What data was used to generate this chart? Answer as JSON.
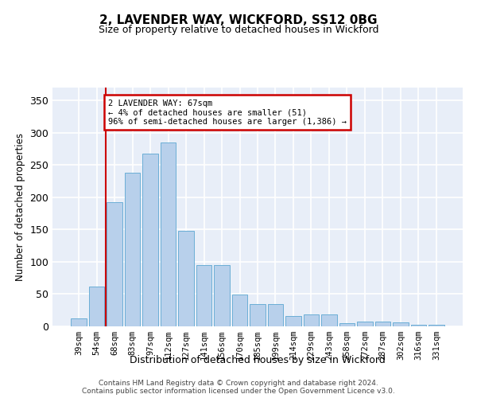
{
  "title1": "2, LAVENDER WAY, WICKFORD, SS12 0BG",
  "title2": "Size of property relative to detached houses in Wickford",
  "xlabel": "Distribution of detached houses by size in Wickford",
  "ylabel": "Number of detached properties",
  "categories": [
    "39sqm",
    "54sqm",
    "68sqm",
    "83sqm",
    "97sqm",
    "112sqm",
    "127sqm",
    "141sqm",
    "156sqm",
    "170sqm",
    "185sqm",
    "199sqm",
    "214sqm",
    "229sqm",
    "243sqm",
    "258sqm",
    "272sqm",
    "287sqm",
    "302sqm",
    "316sqm",
    "331sqm"
  ],
  "values": [
    12,
    62,
    192,
    238,
    268,
    285,
    148,
    95,
    95,
    49,
    35,
    35,
    16,
    18,
    18,
    5,
    8,
    7,
    6,
    2,
    3
  ],
  "bar_color": "#b8d0eb",
  "bar_edge_color": "#6baed6",
  "vline_color": "#cc0000",
  "annotation_text": "2 LAVENDER WAY: 67sqm\n← 4% of detached houses are smaller (51)\n96% of semi-detached houses are larger (1,386) →",
  "annotation_box_color": "#cc0000",
  "ylim": [
    0,
    370
  ],
  "yticks": [
    0,
    50,
    100,
    150,
    200,
    250,
    300,
    350
  ],
  "bg_color": "#e8eef8",
  "grid_color": "#ffffff",
  "footer1": "Contains HM Land Registry data © Crown copyright and database right 2024.",
  "footer2": "Contains public sector information licensed under the Open Government Licence v3.0."
}
